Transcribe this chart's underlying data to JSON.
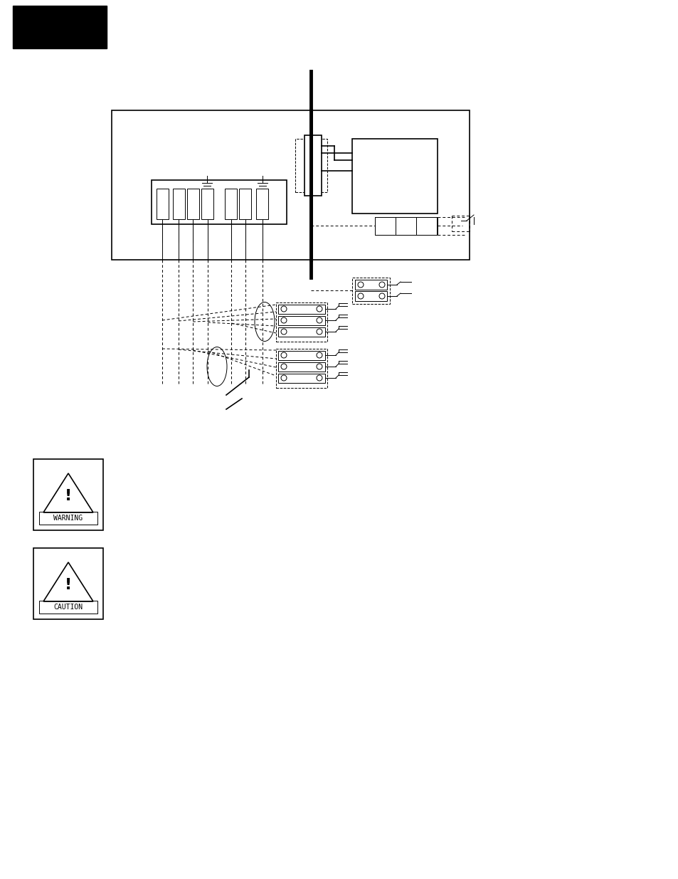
{
  "bg_color": "#ffffff",
  "warning_label": "WARNING",
  "caution_label": "CAUTION"
}
